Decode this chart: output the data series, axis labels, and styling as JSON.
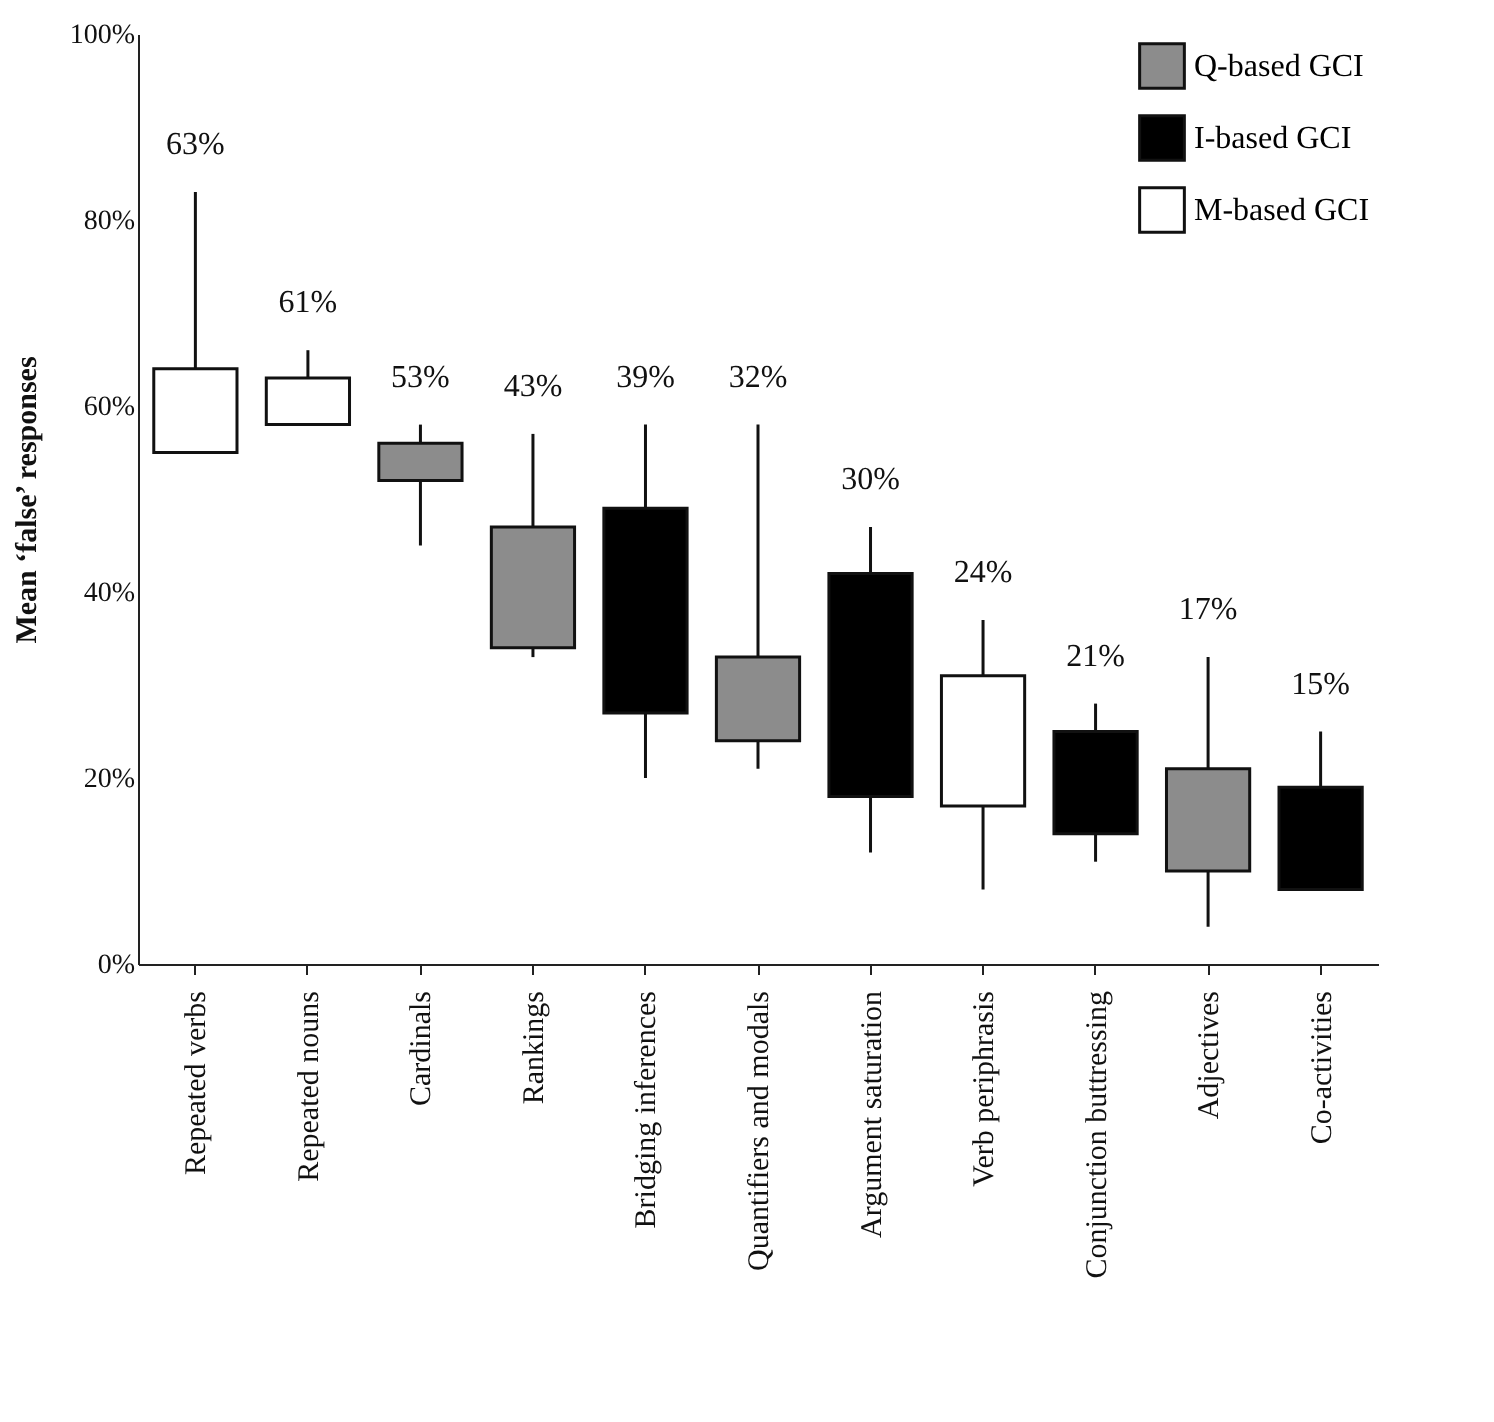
{
  "chart_data": {
    "type": "bar",
    "ylabel": "Mean ‘false’ responses",
    "categories": [
      "Repeated verbs",
      "Repeated nouns",
      "Cardinals",
      "Rankings",
      "Bridging inferences",
      "Quantifiers and modals",
      "Argument saturation",
      "Verb periphrasis",
      "Conjunction buttressing",
      "Adjectives",
      "Co-activities"
    ],
    "series": [
      {
        "name": "Q-based GCI",
        "color": "#8c8c8c",
        "base": [
          null,
          null,
          52,
          34,
          null,
          24,
          null,
          null,
          null,
          10,
          null
        ],
        "values": [
          null,
          null,
          4,
          13,
          null,
          9,
          null,
          null,
          null,
          11,
          null
        ],
        "errors": [
          null,
          null,
          [
            45,
            58
          ],
          [
            33,
            57
          ],
          null,
          [
            21,
            58
          ],
          null,
          null,
          null,
          [
            4,
            33
          ],
          null
        ]
      },
      {
        "name": "I-based GCI",
        "color": "#000000",
        "base": [
          null,
          null,
          null,
          null,
          27,
          null,
          18,
          null,
          14,
          null,
          8
        ],
        "values": [
          null,
          null,
          null,
          null,
          22,
          null,
          24,
          null,
          11,
          null,
          11
        ],
        "errors": [
          null,
          null,
          null,
          null,
          [
            20,
            58
          ],
          null,
          [
            12,
            47
          ],
          null,
          [
            11,
            28
          ],
          null,
          [
            8,
            25
          ]
        ]
      },
      {
        "name": "M-based GCI",
        "color": "#ffffff",
        "base": [
          55,
          58,
          null,
          null,
          null,
          null,
          null,
          17,
          null,
          null,
          null
        ],
        "values": [
          9,
          5,
          null,
          null,
          null,
          null,
          null,
          14,
          null,
          null,
          null
        ],
        "errors": [
          [
            55,
            83
          ],
          [
            58,
            66
          ],
          null,
          null,
          null,
          null,
          null,
          [
            8,
            37
          ],
          null,
          null,
          null
        ]
      }
    ],
    "ylim": [
      0,
      100
    ],
    "yticks": [
      {
        "value": 0,
        "label": "0%"
      },
      {
        "value": 20,
        "label": "20%"
      },
      {
        "value": 40,
        "label": "40%"
      },
      {
        "value": 60,
        "label": "60%"
      },
      {
        "value": 80,
        "label": "80%"
      },
      {
        "value": 100,
        "label": "100%"
      }
    ],
    "annotations": [
      {
        "text": "63%",
        "x": "Repeated verbs",
        "y": 83
      },
      {
        "text": "61%",
        "x": "Repeated nouns",
        "y": 66
      },
      {
        "text": "53%",
        "x": "Cardinals",
        "y": 58
      },
      {
        "text": "43%",
        "x": "Rankings",
        "y": 57
      },
      {
        "text": "39%",
        "x": "Bridging inferences",
        "y": 58
      },
      {
        "text": "32%",
        "x": "Quantifiers and modals",
        "y": 58
      },
      {
        "text": "30%",
        "x": "Argument saturation",
        "y": 47
      },
      {
        "text": "24%",
        "x": "Verb periphrasis",
        "y": 37
      },
      {
        "text": "21%",
        "x": "Conjunction buttressing",
        "y": 28
      },
      {
        "text": "17%",
        "x": "Adjectives",
        "y": 33
      },
      {
        "text": "15%",
        "x": "Co-activities",
        "y": 25
      }
    ],
    "legend": "top right",
    "grid": false
  }
}
